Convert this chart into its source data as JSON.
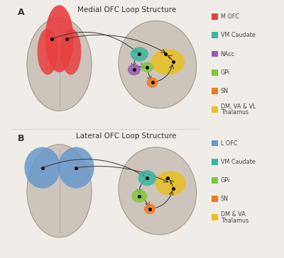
{
  "title_top": "Medial OFC Loop Structure",
  "title_bottom": "Lateral OFC Loop Structure",
  "label_A": "A",
  "label_B": "B",
  "bg_color": "#f0ede8",
  "legend_top": [
    {
      "label": "M OFC",
      "color": "#e84040"
    },
    {
      "label": "VM Caudate",
      "color": "#3ab5a0"
    },
    {
      "label": "NAcc",
      "color": "#9b59b6"
    },
    {
      "label": "GPi",
      "color": "#7dc83a"
    },
    {
      "label": "SN",
      "color": "#f07820"
    },
    {
      "label": "DM, VA & VL\nThalamus",
      "color": "#e8c020"
    }
  ],
  "legend_bottom": [
    {
      "label": "L OFC",
      "color": "#6699cc"
    },
    {
      "label": "VM Caudate",
      "color": "#3ab5a0"
    },
    {
      "label": "GPi",
      "color": "#7dc83a"
    },
    {
      "label": "SN",
      "color": "#f07820"
    },
    {
      "label": "DM & VA\nThalamus",
      "color": "#e8c020"
    }
  ]
}
